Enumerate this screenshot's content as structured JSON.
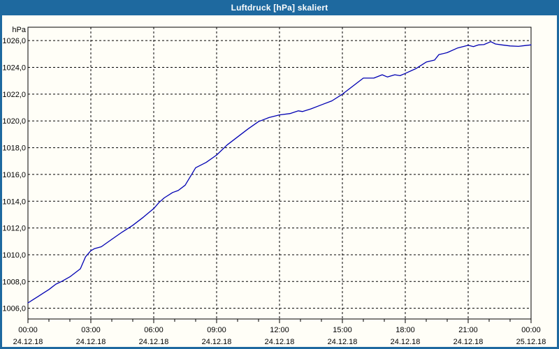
{
  "window": {
    "title": "Luftdruck [hPa] skaliert"
  },
  "colors": {
    "title_bar": "#1e699f",
    "window_border": "#1e699f",
    "title_text": "#ffffff",
    "content_bg": "#fffef7",
    "grid": "#000000",
    "axis": "#000000",
    "tick_text": "#000000",
    "series_line": "#0000b3"
  },
  "axes": {
    "unit_label": "hPa",
    "y_tick_labels": [
      "1026,0",
      "1024,0",
      "1022,0",
      "1020,0",
      "1018,0",
      "1016,0",
      "1014,0",
      "1012,0",
      "1010,0",
      "1008,0",
      "1006,0"
    ],
    "x_ticks": [
      {
        "time": "00:00",
        "date": "24.12.18",
        "hour": 0
      },
      {
        "time": "03:00",
        "date": "24.12.18",
        "hour": 3
      },
      {
        "time": "06:00",
        "date": "24.12.18",
        "hour": 6
      },
      {
        "time": "09:00",
        "date": "24.12.18",
        "hour": 9
      },
      {
        "time": "12:00",
        "date": "24.12.18",
        "hour": 12
      },
      {
        "time": "15:00",
        "date": "24.12.18",
        "hour": 15
      },
      {
        "time": "18:00",
        "date": "24.12.18",
        "hour": 18
      },
      {
        "time": "21:00",
        "date": "24.12.18",
        "hour": 21
      },
      {
        "time": "00:00",
        "date": "25.12.18",
        "hour": 24
      }
    ]
  },
  "chart_data": {
    "type": "line",
    "title": "Luftdruck [hPa] skaliert",
    "xlabel": "",
    "ylabel": "hPa",
    "xlim": [
      0,
      24
    ],
    "ylim": [
      1005.2,
      1027.0
    ],
    "x_unit": "hours since 24.12.18 00:00",
    "grid": "dashed",
    "legend": "none",
    "y_gridlines": [
      1006,
      1008,
      1010,
      1012,
      1014,
      1016,
      1018,
      1020,
      1022,
      1024,
      1026
    ],
    "x_gridlines_hours": [
      3,
      6,
      9,
      12,
      15,
      18,
      21
    ],
    "x_minor_tick_step_hours": 1,
    "series": [
      {
        "name": "Luftdruck",
        "x": [
          0,
          0.25,
          0.5,
          0.75,
          1,
          1.33,
          1.6,
          2,
          2.5,
          2.75,
          3,
          3.17,
          3.5,
          4,
          4.5,
          5,
          5.5,
          6,
          6.25,
          6.5,
          6.9,
          7.17,
          7.5,
          8,
          8.5,
          9,
          9.5,
          10,
          10.5,
          11,
          11.5,
          12,
          12.5,
          12.9,
          13.1,
          13.5,
          14,
          14.5,
          15,
          15.5,
          16,
          16.5,
          16.9,
          17.15,
          17.5,
          17.75,
          18,
          18.5,
          19,
          19.4,
          19.6,
          20,
          20.5,
          21,
          21.25,
          21.5,
          21.75,
          22.08,
          22.3,
          22.6,
          23,
          23.4,
          23.7,
          24
        ],
        "y": [
          1006.4,
          1006.65,
          1006.9,
          1007.15,
          1007.4,
          1007.8,
          1008.0,
          1008.35,
          1008.95,
          1009.85,
          1010.3,
          1010.45,
          1010.6,
          1011.15,
          1011.7,
          1012.2,
          1012.8,
          1013.45,
          1013.9,
          1014.25,
          1014.65,
          1014.8,
          1015.2,
          1016.5,
          1016.9,
          1017.45,
          1018.2,
          1018.8,
          1019.4,
          1019.95,
          1020.25,
          1020.45,
          1020.55,
          1020.75,
          1020.7,
          1020.9,
          1021.2,
          1021.5,
          1022.0,
          1022.6,
          1023.2,
          1023.2,
          1023.45,
          1023.28,
          1023.45,
          1023.38,
          1023.55,
          1023.9,
          1024.4,
          1024.55,
          1024.95,
          1025.1,
          1025.45,
          1025.65,
          1025.55,
          1025.68,
          1025.7,
          1025.92,
          1025.75,
          1025.68,
          1025.6,
          1025.57,
          1025.63,
          1025.68
        ]
      }
    ]
  }
}
